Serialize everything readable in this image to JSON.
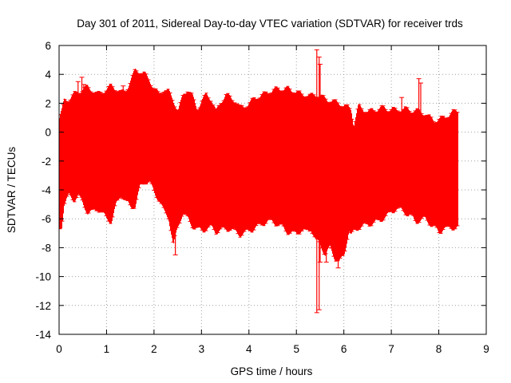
{
  "chart_data": {
    "type": "errorbar",
    "title": "Day 301 of 2011, Sidereal Day-to-day VTEC variation (SDTVAR) for receiver trds",
    "xlabel": "GPS time / hours",
    "ylabel": "SDTVAR / TECUs",
    "xlim": [
      0,
      9
    ],
    "ylim": [
      -14,
      6
    ],
    "xticks": [
      0,
      1,
      2,
      3,
      4,
      5,
      6,
      7,
      8,
      9
    ],
    "yticks": [
      -14,
      -12,
      -10,
      -8,
      -6,
      -4,
      -2,
      0,
      2,
      4,
      6
    ],
    "grid": true,
    "series_color": "#ff0000",
    "envelope": {
      "x": [
        0.0,
        0.05,
        0.1,
        0.2,
        0.3,
        0.4,
        0.5,
        0.6,
        0.7,
        0.8,
        0.9,
        1.0,
        1.1,
        1.2,
        1.3,
        1.4,
        1.5,
        1.6,
        1.7,
        1.8,
        1.9,
        2.0,
        2.1,
        2.2,
        2.3,
        2.4,
        2.5,
        2.6,
        2.7,
        2.8,
        2.9,
        3.0,
        3.1,
        3.2,
        3.3,
        3.4,
        3.5,
        3.6,
        3.7,
        3.8,
        3.9,
        4.0,
        4.1,
        4.2,
        4.3,
        4.4,
        4.5,
        4.6,
        4.7,
        4.8,
        4.9,
        5.0,
        5.1,
        5.2,
        5.3,
        5.4,
        5.5,
        5.6,
        5.7,
        5.8,
        5.9,
        6.0,
        6.1,
        6.15,
        6.2,
        6.3,
        6.4,
        6.5,
        6.6,
        6.7,
        6.8,
        6.9,
        7.0,
        7.1,
        7.2,
        7.3,
        7.4,
        7.5,
        7.6,
        7.7,
        7.8,
        7.9,
        8.0,
        8.1,
        8.2,
        8.3,
        8.4
      ],
      "upper": [
        1.0,
        1.5,
        2.2,
        2.3,
        2.6,
        2.8,
        3.0,
        3.1,
        2.9,
        2.6,
        2.8,
        3.0,
        3.2,
        3.0,
        2.7,
        2.9,
        3.6,
        4.3,
        4.2,
        4.0,
        3.6,
        3.0,
        2.6,
        3.0,
        2.8,
        2.2,
        1.5,
        2.5,
        3.0,
        2.5,
        1.6,
        2.2,
        2.6,
        2.3,
        1.4,
        2.1,
        2.6,
        2.4,
        2.2,
        1.7,
        1.8,
        2.0,
        2.3,
        2.5,
        2.6,
        2.8,
        2.9,
        3.0,
        3.0,
        3.0,
        2.9,
        2.8,
        2.6,
        2.6,
        2.5,
        2.6,
        2.5,
        2.3,
        2.2,
        2.1,
        2.0,
        1.8,
        1.7,
        1.6,
        0.5,
        1.8,
        1.6,
        1.4,
        1.5,
        1.6,
        1.7,
        1.6,
        1.6,
        1.5,
        1.6,
        1.6,
        1.5,
        1.5,
        1.4,
        1.3,
        1.0,
        0.8,
        0.9,
        1.0,
        1.2,
        1.4,
        1.5
      ],
      "lower": [
        -6.7,
        -6.5,
        -5.0,
        -4.4,
        -4.7,
        -4.4,
        -5.0,
        -5.6,
        -5.5,
        -5.3,
        -5.6,
        -6.0,
        -6.2,
        -5.0,
        -4.3,
        -4.8,
        -5.2,
        -5.1,
        -3.8,
        -3.4,
        -3.5,
        -4.2,
        -4.7,
        -5.5,
        -5.9,
        -7.9,
        -6.5,
        -5.6,
        -6.0,
        -6.5,
        -6.7,
        -6.8,
        -6.7,
        -6.6,
        -6.9,
        -6.8,
        -6.7,
        -6.7,
        -6.9,
        -7.1,
        -7.0,
        -6.8,
        -6.7,
        -6.5,
        -6.3,
        -6.2,
        -6.2,
        -6.4,
        -6.6,
        -6.9,
        -7.0,
        -7.0,
        -6.8,
        -6.9,
        -6.7,
        -7.5,
        -7.8,
        -8.5,
        -8.0,
        -8.7,
        -9.0,
        -8.5,
        -6.8,
        -7.2,
        -6.9,
        -6.6,
        -6.5,
        -6.4,
        -6.3,
        -6.2,
        -6.0,
        -5.8,
        -5.5,
        -5.3,
        -5.4,
        -5.6,
        -5.8,
        -6.2,
        -6.1,
        -6.0,
        -6.3,
        -6.6,
        -7.0,
        -6.6,
        -6.7,
        -6.6,
        -6.6
      ]
    },
    "spikes": [
      {
        "x": 0.4,
        "low": -4.0,
        "high": 3.5
      },
      {
        "x": 0.48,
        "low": -4.5,
        "high": 3.8
      },
      {
        "x": 0.52,
        "low": -4.0,
        "high": 3.3
      },
      {
        "x": 1.35,
        "low": -4.5,
        "high": 3.2
      },
      {
        "x": 2.45,
        "low": -8.5,
        "high": 1.0
      },
      {
        "x": 5.43,
        "low": -12.5,
        "high": 5.7
      },
      {
        "x": 5.48,
        "low": -12.3,
        "high": 5.2
      },
      {
        "x": 5.5,
        "low": -9.0,
        "high": 4.7
      },
      {
        "x": 5.63,
        "low": -9.0,
        "high": 2.0
      },
      {
        "x": 5.88,
        "low": -9.4,
        "high": 1.5
      },
      {
        "x": 7.22,
        "low": -5.2,
        "high": 2.4
      },
      {
        "x": 7.58,
        "low": -5.0,
        "high": 3.7
      },
      {
        "x": 7.62,
        "low": -5.0,
        "high": 3.4
      }
    ]
  }
}
